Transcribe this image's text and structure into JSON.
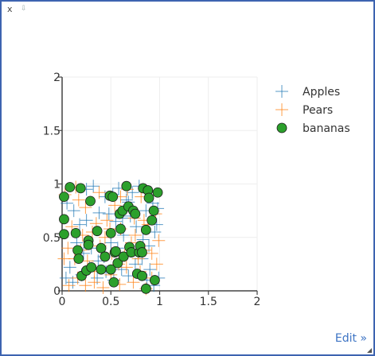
{
  "window": {
    "close_label": "x",
    "pin_glyph": "⇩",
    "edit_label": "Edit »"
  },
  "colors": {
    "apples": "#1f77b4",
    "pears": "#ff7f0e",
    "bananas": "#2ca02c",
    "bananas_edge": "#1a1a1a",
    "grid": "#eeeeee",
    "axis": "#444444"
  },
  "chart_data": {
    "type": "scatter",
    "title": "",
    "xlabel": "",
    "ylabel": "",
    "xlim": [
      0,
      2
    ],
    "ylim": [
      0,
      2
    ],
    "xticks": [
      "0",
      "0.5",
      "1",
      "1.5",
      "2"
    ],
    "yticks": [
      "0",
      "0.5",
      "1",
      "1.5",
      "2"
    ],
    "grid": true,
    "legend_position": "right",
    "series": [
      {
        "name": "Apples",
        "marker": "cross",
        "color": "#1f77b4",
        "points": [
          [
            0.05,
            0.82
          ],
          [
            0.12,
            0.75
          ],
          [
            0.18,
            0.62
          ],
          [
            0.25,
            0.95
          ],
          [
            0.32,
            0.98
          ],
          [
            0.38,
            0.73
          ],
          [
            0.44,
            0.88
          ],
          [
            0.52,
            0.9
          ],
          [
            0.58,
            0.96
          ],
          [
            0.66,
            0.85
          ],
          [
            0.72,
            0.92
          ],
          [
            0.79,
            0.98
          ],
          [
            0.86,
            0.75
          ],
          [
            0.93,
            0.82
          ],
          [
            0.98,
            0.77
          ],
          [
            0.97,
            0.62
          ],
          [
            0.95,
            0.55
          ],
          [
            0.89,
            0.42
          ],
          [
            0.83,
            0.48
          ],
          [
            0.76,
            0.6
          ],
          [
            0.7,
            0.7
          ],
          [
            0.63,
            0.52
          ],
          [
            0.57,
            0.4
          ],
          [
            0.5,
            0.45
          ],
          [
            0.43,
            0.32
          ],
          [
            0.37,
            0.28
          ],
          [
            0.3,
            0.4
          ],
          [
            0.22,
            0.35
          ],
          [
            0.15,
            0.45
          ],
          [
            0.08,
            0.22
          ],
          [
            0.04,
            0.12
          ],
          [
            0.11,
            0.08
          ],
          [
            0.2,
            0.15
          ],
          [
            0.28,
            0.22
          ],
          [
            0.36,
            0.12
          ],
          [
            0.45,
            0.18
          ],
          [
            0.53,
            0.1
          ],
          [
            0.61,
            0.2
          ],
          [
            0.68,
            0.14
          ],
          [
            0.75,
            0.25
          ],
          [
            0.82,
            0.3
          ],
          [
            0.9,
            0.2
          ],
          [
            0.99,
            0.12
          ],
          [
            0.94,
            0.05
          ],
          [
            0.87,
            0.1
          ],
          [
            0.62,
            0.68
          ],
          [
            0.48,
            0.72
          ],
          [
            0.25,
            0.66
          ],
          [
            0.68,
            0.83
          ],
          [
            0.55,
            0.65
          ]
        ]
      },
      {
        "name": "Pears",
        "marker": "cross",
        "color": "#ff7f0e",
        "points": [
          [
            0.03,
            0.9
          ],
          [
            0.1,
            0.6
          ],
          [
            0.17,
            0.85
          ],
          [
            0.24,
            0.78
          ],
          [
            0.31,
            0.55
          ],
          [
            0.38,
            0.92
          ],
          [
            0.46,
            0.66
          ],
          [
            0.54,
            0.8
          ],
          [
            0.6,
            0.58
          ],
          [
            0.67,
            0.95
          ],
          [
            0.74,
            0.68
          ],
          [
            0.81,
            0.88
          ],
          [
            0.88,
            0.62
          ],
          [
            0.96,
            0.72
          ],
          [
            0.99,
            0.47
          ],
          [
            0.92,
            0.35
          ],
          [
            0.85,
            0.38
          ],
          [
            0.78,
            0.3
          ],
          [
            0.71,
            0.45
          ],
          [
            0.64,
            0.33
          ],
          [
            0.58,
            0.25
          ],
          [
            0.51,
            0.35
          ],
          [
            0.44,
            0.5
          ],
          [
            0.39,
            0.42
          ],
          [
            0.33,
            0.18
          ],
          [
            0.26,
            0.28
          ],
          [
            0.19,
            0.38
          ],
          [
            0.13,
            0.3
          ],
          [
            0.06,
            0.4
          ],
          [
            0.02,
            0.3
          ],
          [
            0.07,
            0.05
          ],
          [
            0.16,
            0.12
          ],
          [
            0.24,
            0.05
          ],
          [
            0.33,
            0.08
          ],
          [
            0.42,
            0.03
          ],
          [
            0.5,
            0.15
          ],
          [
            0.59,
            0.06
          ],
          [
            0.66,
            0.22
          ],
          [
            0.73,
            0.08
          ],
          [
            0.8,
            0.18
          ],
          [
            0.86,
            0.02
          ],
          [
            0.92,
            0.12
          ],
          [
            0.97,
            0.25
          ],
          [
            0.49,
            0.58
          ],
          [
            0.21,
            0.52
          ],
          [
            0.35,
            0.63
          ],
          [
            0.6,
            0.88
          ],
          [
            0.75,
            0.52
          ],
          [
            0.14,
            0.97
          ],
          [
            0.84,
            0.66
          ]
        ]
      },
      {
        "name": "bananas",
        "marker": "circle",
        "color": "#2ca02c",
        "points": [
          [
            0.02,
            0.88
          ],
          [
            0.02,
            0.67
          ],
          [
            0.02,
            0.53
          ],
          [
            0.08,
            0.97
          ],
          [
            0.14,
            0.54
          ],
          [
            0.16,
            0.38
          ],
          [
            0.17,
            0.3
          ],
          [
            0.19,
            0.96
          ],
          [
            0.2,
            0.14
          ],
          [
            0.25,
            0.19
          ],
          [
            0.27,
            0.47
          ],
          [
            0.27,
            0.43
          ],
          [
            0.29,
            0.84
          ],
          [
            0.3,
            0.22
          ],
          [
            0.36,
            0.56
          ],
          [
            0.4,
            0.4
          ],
          [
            0.4,
            0.2
          ],
          [
            0.44,
            0.32
          ],
          [
            0.49,
            0.89
          ],
          [
            0.5,
            0.2
          ],
          [
            0.5,
            0.54
          ],
          [
            0.52,
            0.88
          ],
          [
            0.53,
            0.08
          ],
          [
            0.54,
            0.36
          ],
          [
            0.55,
            0.37
          ],
          [
            0.57,
            0.26
          ],
          [
            0.59,
            0.72
          ],
          [
            0.6,
            0.58
          ],
          [
            0.62,
            0.75
          ],
          [
            0.63,
            0.32
          ],
          [
            0.66,
            0.98
          ],
          [
            0.68,
            0.79
          ],
          [
            0.69,
            0.41
          ],
          [
            0.71,
            0.36
          ],
          [
            0.73,
            0.75
          ],
          [
            0.75,
            0.72
          ],
          [
            0.77,
            0.16
          ],
          [
            0.79,
            0.36
          ],
          [
            0.8,
            0.42
          ],
          [
            0.82,
            0.14
          ],
          [
            0.82,
            0.36
          ],
          [
            0.83,
            0.96
          ],
          [
            0.86,
            0.57
          ],
          [
            0.88,
            0.94
          ],
          [
            0.89,
            0.87
          ],
          [
            0.86,
            0.02
          ],
          [
            0.92,
            0.66
          ],
          [
            0.94,
            0.75
          ],
          [
            0.95,
            0.1
          ],
          [
            0.98,
            0.92
          ]
        ]
      }
    ]
  }
}
